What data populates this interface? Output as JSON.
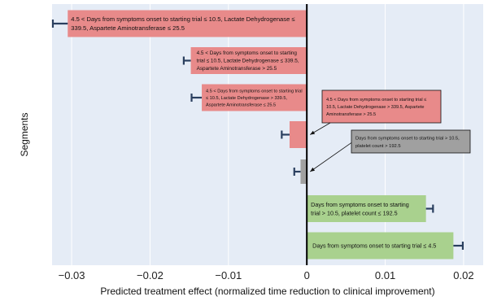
{
  "chart_data": {
    "type": "bar",
    "orientation": "horizontal",
    "xlabel": "Predicted treatment effect (normalized time reduction to clinical improvement)",
    "ylabel": "Segments",
    "xlim": [
      -0.0325,
      0.0225
    ],
    "x_ticks": [
      -0.03,
      -0.02,
      -0.01,
      0,
      0.01,
      0.02
    ],
    "x_tick_labels": [
      "−0.03",
      "−0.02",
      "−0.01",
      "0",
      "0.01",
      "0.02"
    ],
    "grid": true,
    "segments": [
      {
        "value": -0.0305,
        "error": 0.0019,
        "color": "#e88a8a",
        "label_placement": "inside",
        "label_lines": [
          "4.5 < Days from symptoms onset to starting trial ≤ 10.5, Lactate Dehydrogenase ≤",
          "339.5, Aspartete Aminotransferase ≤ 25.5"
        ]
      },
      {
        "value": -0.0148,
        "error": 0.0009,
        "color": "#e88a8a",
        "label_placement": "inside",
        "label_lines": [
          "4.5 < Days from symptoms onset to starting",
          "trial ≤ 10.5, Lactate Dehydrogenase ≤ 339.5,",
          "Aspartete Aminotransferase > 25.5"
        ]
      },
      {
        "value": -0.0134,
        "error": 0.0013,
        "color": "#e88a8a",
        "label_placement": "inside",
        "label_lines": [
          "4.5 < Days from symptoms onset to starting trial",
          "≤ 10.5, Lactate Dehydrogenase > 339.5,",
          "Aspartete Aminotransferase ≤ 25.5"
        ]
      },
      {
        "value": -0.0022,
        "error": 0.001,
        "color": "#e88a8a",
        "label_placement": "callout",
        "label_lines": [
          "4.5 < Days from symptoms onset to starting trial ≤",
          "10.5, Lactate Dehydrogenase > 339.5, Aspartete",
          "Aminotransferase > 25.5"
        ]
      },
      {
        "value": -0.0008,
        "error": 0.0008,
        "color": "#a0a0a0",
        "label_placement": "callout",
        "label_lines": [
          "Days from symptoms onset to starting trial > 10.5,",
          "platelet count > 192.5"
        ]
      },
      {
        "value": 0.0152,
        "error": 0.0009,
        "color": "#a9d18e",
        "label_placement": "inside",
        "label_lines": [
          "Days from symptoms onset to starting",
          "trial > 10.5, platelet count ≤ 192.5"
        ]
      },
      {
        "value": 0.0187,
        "error": 0.0012,
        "color": "#a9d18e",
        "label_placement": "inside",
        "label_lines": [
          "Days from symptoms onset to starting trial ≤ 4.5"
        ]
      }
    ]
  }
}
